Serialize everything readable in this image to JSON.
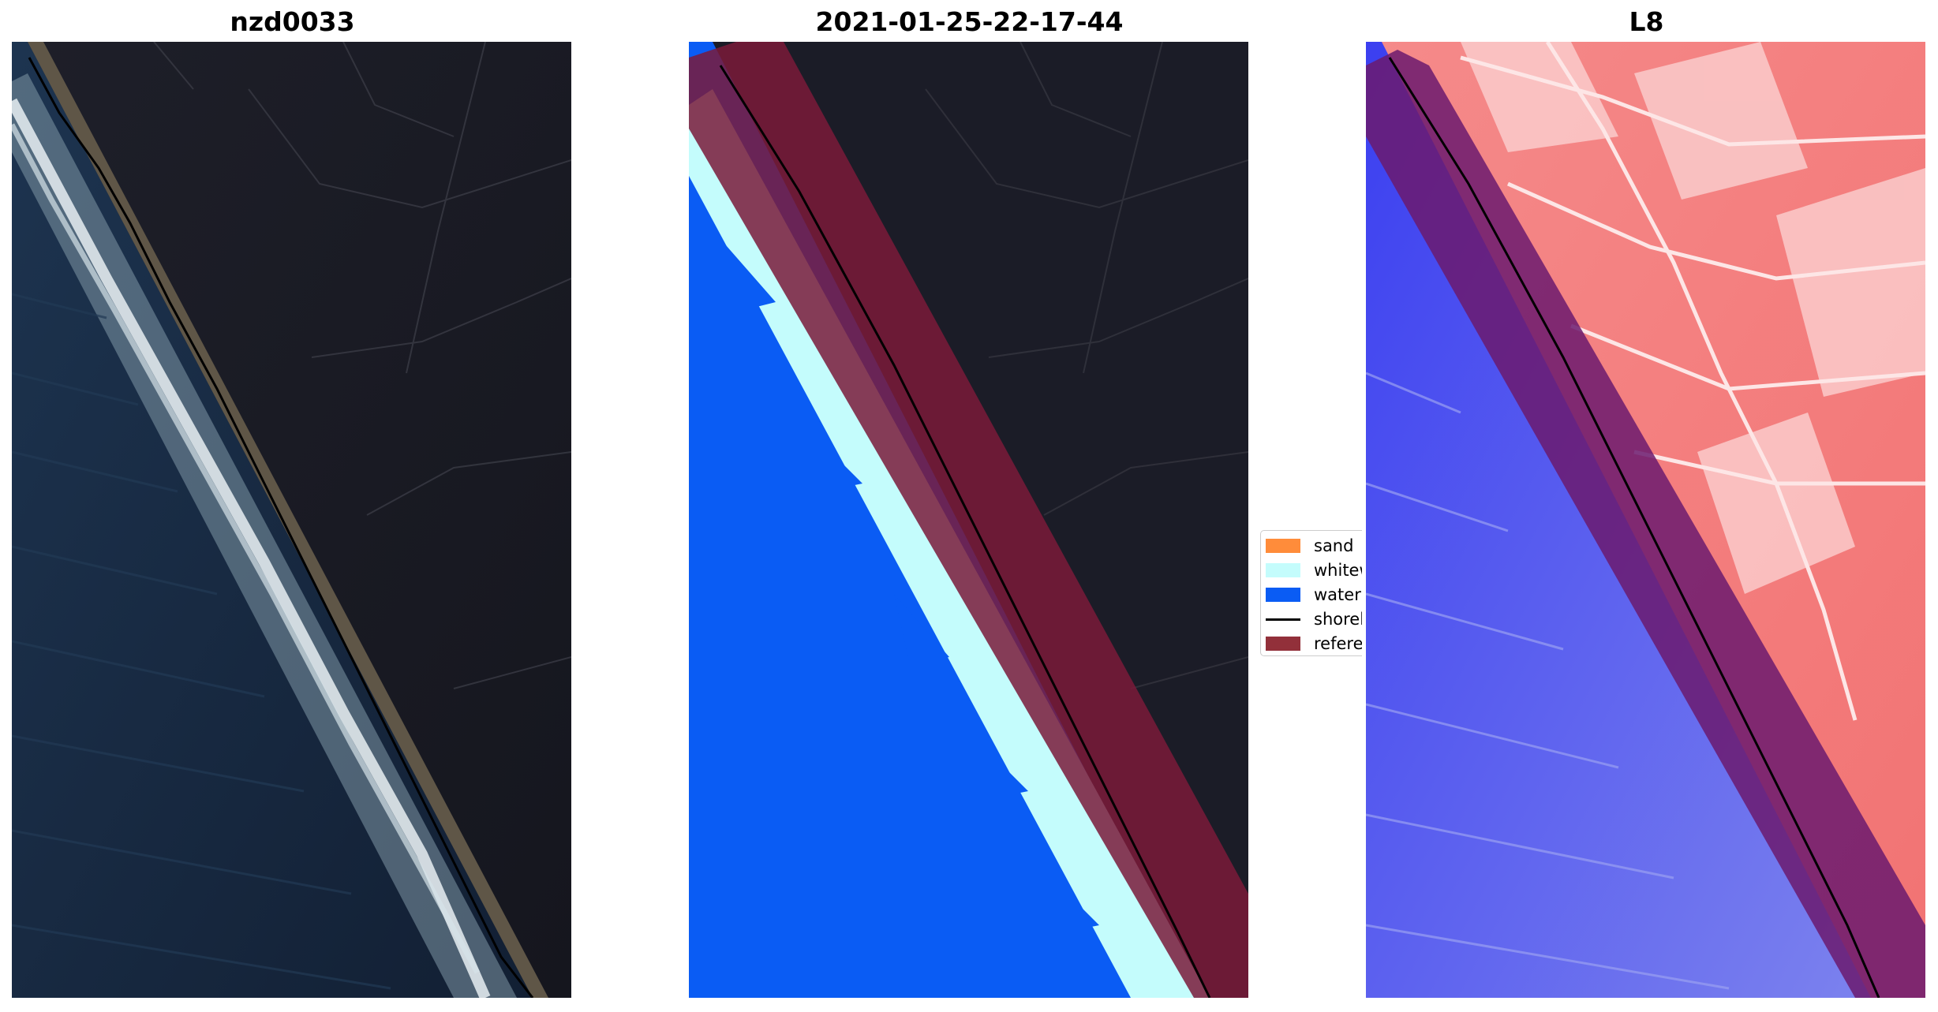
{
  "panels": {
    "rgb": {
      "title": "nzd0033"
    },
    "classified": {
      "title": "2021-01-25-22-17-44"
    },
    "index": {
      "title": "L8"
    }
  },
  "legend": {
    "items": [
      {
        "label": "sand",
        "color": "#ff8c3a",
        "kind": "patch"
      },
      {
        "label": "whitew",
        "color": "#c4fcfc",
        "kind": "patch"
      },
      {
        "label": "water",
        "color": "#0a5cf4",
        "kind": "patch"
      },
      {
        "label": "shoreli",
        "color": "#000000",
        "kind": "line"
      },
      {
        "label": "referen",
        "color": "#92303a",
        "kind": "patch"
      }
    ]
  },
  "colors": {
    "land_dark": "#1b1c27",
    "sea_dark": "#17283f",
    "surf_white": "#dfe9ee",
    "beach_tan": "#6a5e4e",
    "water_class": "#0a5cf4",
    "whitewater_class": "#c4fcfc",
    "reference_buffer": "#7a1a3a",
    "index_land": "#f47a7a",
    "index_sea": "#2b34e6"
  }
}
